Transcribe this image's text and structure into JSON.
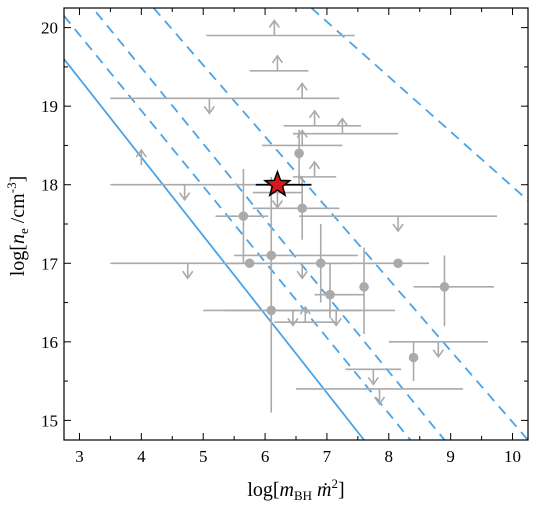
{
  "chart_data": {
    "type": "scatter",
    "xlabel": "log[m_BH ṁ²]",
    "ylabel": "log[n_e /cm⁻³]",
    "xlabel_parts": {
      "pre": "log[",
      "var": "m",
      "sub": "BH",
      "mid": " ",
      "var2": "ṁ",
      "sup": "2",
      "post": "]"
    },
    "ylabel_parts": {
      "pre": "log[",
      "var": "n",
      "sub": "e",
      "mid": " /cm",
      "sup": "-3",
      "post": "]"
    },
    "xlim": [
      2.75,
      10.25
    ],
    "ylim": [
      14.75,
      20.25
    ],
    "xticks": [
      "3",
      "4",
      "5",
      "6",
      "7",
      "8",
      "9",
      "10"
    ],
    "yticks": [
      "15",
      "16",
      "17",
      "18",
      "19",
      "20"
    ],
    "grid": false,
    "colors": {
      "line": "#4aa3e6",
      "points": "#aaaaaa",
      "star": "#d7191c",
      "frame": "#000000"
    },
    "lines": [
      {
        "style": "solid",
        "x": [
          2.75,
          7.6
        ],
        "y": [
          19.6,
          14.75
        ]
      },
      {
        "style": "dashed",
        "x": [
          2.75,
          8.35
        ],
        "y": [
          20.15,
          14.75
        ]
      },
      {
        "style": "dashed",
        "x": [
          2.75,
          8.9
        ],
        "y": [
          20.7,
          14.75
        ]
      },
      {
        "style": "dashed",
        "x": [
          4.2,
          10.25
        ],
        "y": [
          20.25,
          14.75
        ]
      },
      {
        "style": "dashed",
        "x": [
          6.75,
          10.25
        ],
        "y": [
          20.25,
          17.8
        ]
      }
    ],
    "points": [
      {
        "x": 6.55,
        "y": 18.4,
        "xerr": [
          0.0,
          0.0
        ],
        "yerr": [
          0.4,
          0.3
        ]
      },
      {
        "x": 5.65,
        "y": 17.6,
        "xerr": [
          0.45,
          0.4
        ],
        "yerr": [
          0.6,
          0.6
        ]
      },
      {
        "x": 6.6,
        "y": 17.7,
        "xerr": [
          0.8,
          0.6
        ],
        "yerr": [
          0.4,
          0.4
        ]
      },
      {
        "x": 5.75,
        "y": 17.0,
        "xerr": [
          0.4,
          0.6
        ],
        "yerr": [
          0.0,
          0.0
        ]
      },
      {
        "x": 6.1,
        "y": 17.1,
        "xerr": [
          0.6,
          1.4
        ],
        "yerr": [
          0.9,
          1.0
        ]
      },
      {
        "x": 6.9,
        "y": 17.0,
        "xerr": [
          0.6,
          0.5
        ],
        "yerr": [
          0.5,
          0.5
        ]
      },
      {
        "x": 7.05,
        "y": 16.6,
        "xerr": [
          0.25,
          0.55
        ],
        "yerr": [
          0.3,
          0.4
        ]
      },
      {
        "x": 7.6,
        "y": 16.7,
        "xerr": [
          0.0,
          0.0
        ],
        "yerr": [
          0.6,
          0.5
        ]
      },
      {
        "x": 8.15,
        "y": 17.0,
        "xerr": [
          0.55,
          0.5
        ],
        "yerr": [
          0.0,
          0.0
        ]
      },
      {
        "x": 8.9,
        "y": 16.7,
        "xerr": [
          0.5,
          0.8
        ],
        "yerr": [
          0.5,
          0.4
        ]
      },
      {
        "x": 8.4,
        "y": 15.8,
        "xerr": [
          0.0,
          0.0
        ],
        "yerr": [
          0.3,
          0.2
        ]
      },
      {
        "x": 6.1,
        "y": 16.4,
        "xerr": [
          1.1,
          0.8
        ],
        "yerr": [
          1.3,
          0.6
        ]
      }
    ],
    "upper_limits": [
      {
        "x": 4.7,
        "y": 18.0,
        "xerr": [
          1.2,
          1.8
        ]
      },
      {
        "x": 4.75,
        "y": 17.0,
        "xerr": [
          1.25,
          1.25
        ]
      },
      {
        "x": 5.1,
        "y": 19.1,
        "xerr": [
          1.6,
          1.3
        ]
      },
      {
        "x": 6.6,
        "y": 17.0,
        "xerr": [
          1.2,
          1.2
        ]
      },
      {
        "x": 6.45,
        "y": 16.4,
        "xerr": [
          1.1,
          1.1
        ]
      },
      {
        "x": 7.15,
        "y": 16.4,
        "xerr": [
          0.95,
          0.95
        ]
      },
      {
        "x": 8.15,
        "y": 17.6,
        "xerr": [
          1.6,
          1.6
        ]
      },
      {
        "x": 8.8,
        "y": 16.0,
        "xerr": [
          0.8,
          0.8
        ]
      },
      {
        "x": 7.75,
        "y": 15.65,
        "xerr": [
          0.45,
          0.45
        ]
      },
      {
        "x": 7.85,
        "y": 15.4,
        "xerr": [
          1.35,
          1.35
        ]
      },
      {
        "x": 6.2,
        "y": 17.9,
        "xerr": [
          0.4,
          0.4
        ]
      }
    ],
    "lower_limits": [
      {
        "x": 6.15,
        "y": 19.9,
        "xerr": [
          1.1,
          1.3
        ]
      },
      {
        "x": 6.2,
        "y": 19.45,
        "xerr": [
          0.45,
          0.5
        ]
      },
      {
        "x": 6.6,
        "y": 19.1,
        "xerr": [
          1.1,
          0.6
        ]
      },
      {
        "x": 6.8,
        "y": 18.75,
        "xerr": [
          0.5,
          0.75
        ]
      },
      {
        "x": 7.25,
        "y": 18.65,
        "xerr": [
          0.8,
          0.9
        ]
      },
      {
        "x": 6.6,
        "y": 18.5,
        "xerr": [
          0.65,
          0.65
        ]
      },
      {
        "x": 6.8,
        "y": 18.1,
        "xerr": [
          0.35,
          0.35
        ]
      },
      {
        "x": 4.0,
        "y": 18.25,
        "xerr": [
          0.0,
          0.0
        ]
      },
      {
        "x": 6.65,
        "y": 16.25,
        "xerr": [
          0.5,
          0.5
        ]
      }
    ],
    "highlight": {
      "x": 6.2,
      "y": 18.0,
      "xerr": [
        0.35,
        0.55
      ],
      "marker": "star"
    }
  }
}
